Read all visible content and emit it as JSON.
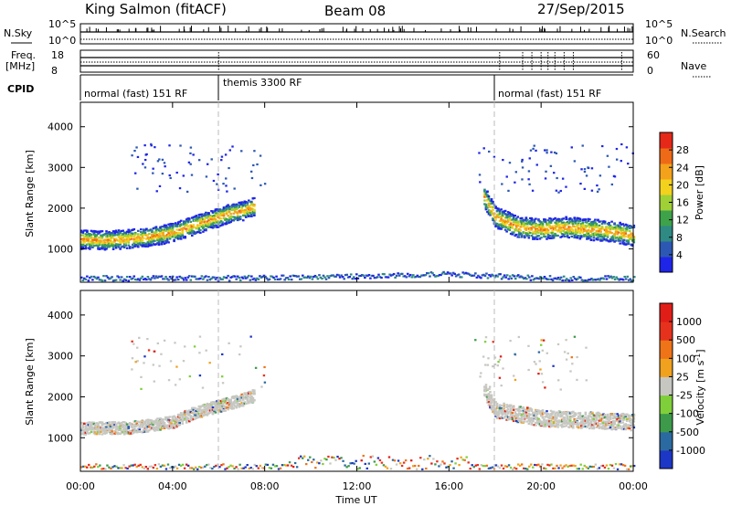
{
  "header": {
    "station": "King Salmon (fitACF)",
    "beam": "Beam 08",
    "date": "27/Sep/2015"
  },
  "status_panels": {
    "nsky_label": "N.Sky",
    "nsearch_label": "N.Search",
    "nsky_ticks": [
      "10^5",
      "10^0"
    ],
    "freq_label": "Freq.",
    "freq_unit": "[MHz]",
    "freq_ticks": [
      "18",
      "8"
    ],
    "nave_label": "Nave",
    "nave_ticks": [
      "60",
      "0"
    ],
    "cpid_label": "CPID",
    "cpid_segments": [
      {
        "start": 0,
        "end": 6,
        "label": "normal (fast) 151 RF"
      },
      {
        "start": 6,
        "end": 18,
        "label": "themis 3300 RF"
      },
      {
        "start": 18,
        "end": 24,
        "label": "normal (fast) 151 RF"
      }
    ]
  },
  "x_axis": {
    "label": "Time UT",
    "ticks": [
      "00:00",
      "04:00",
      "08:00",
      "12:00",
      "16:00",
      "20:00",
      "00:00"
    ],
    "tick_hours": [
      0,
      4,
      8,
      12,
      16,
      20,
      24
    ]
  },
  "colorbars": {
    "power": {
      "title": "Power [dB]",
      "labels": [
        "28",
        "24",
        "20",
        "16",
        "12",
        "8",
        "4"
      ],
      "colors": [
        "#1f25e8",
        "#2c58b4",
        "#2f8a84",
        "#3da24a",
        "#9fd035",
        "#f2d21d",
        "#f4a21b",
        "#ef6a16",
        "#e62818"
      ]
    },
    "velocity": {
      "title": "Velocity [m s",
      "title_sup": "-1",
      "title_end": "]",
      "labels": [
        "1000",
        "500",
        "100",
        "25",
        "-25",
        "-100",
        "-500",
        "-1000"
      ],
      "colors": [
        "#1c36c6",
        "#2b6aa0",
        "#3c9a4a",
        "#7fcf3a",
        "#c7c7c2",
        "#f0a11e",
        "#ef7418",
        "#e6321c",
        "#e11d18"
      ]
    }
  },
  "chart_data": [
    {
      "type": "heatmap",
      "panel": "power",
      "ylabel": "Slant Range [km]",
      "ylim": [
        180,
        4600
      ],
      "yticks": [
        1000,
        2000,
        3000,
        4000
      ],
      "xlim_hours": [
        0,
        24
      ],
      "series": [
        {
          "name": "main backscatter band (range km vs hour)",
          "x": [
            0,
            1,
            2,
            3,
            4,
            5,
            6,
            6.5,
            7,
            7.5
          ],
          "y": [
            1250,
            1230,
            1260,
            1320,
            1420,
            1620,
            1800,
            1900,
            1950,
            2050
          ]
        },
        {
          "name": "evening band (range km vs hour)",
          "x": [
            17.5,
            18,
            19,
            20,
            21,
            22,
            23,
            24
          ],
          "y": [
            2300,
            1800,
            1550,
            1500,
            1550,
            1500,
            1450,
            1350
          ]
        },
        {
          "name": "near-range ground clutter (range km vs hour)",
          "x": [
            0,
            6,
            10,
            12,
            14,
            16,
            20,
            24
          ],
          "y": [
            300,
            300,
            320,
            350,
            380,
            400,
            300,
            300
          ]
        }
      ]
    },
    {
      "type": "heatmap",
      "panel": "velocity",
      "ylabel": "Slant Range [km]",
      "ylim": [
        180,
        4600
      ],
      "yticks": [
        1000,
        2000,
        3000,
        4000
      ],
      "xlim_hours": [
        0,
        24
      ],
      "series": [
        {
          "name": "ground scatter band (range km vs hour)",
          "x": [
            0,
            2,
            4,
            5,
            6,
            7,
            7.5
          ],
          "y": [
            1250,
            1260,
            1400,
            1650,
            1800,
            1950,
            2050
          ]
        },
        {
          "name": "evening band (range km vs hour)",
          "x": [
            17.5,
            18,
            20,
            22,
            24
          ],
          "y": [
            2200,
            1700,
            1500,
            1450,
            1400
          ]
        }
      ]
    }
  ]
}
